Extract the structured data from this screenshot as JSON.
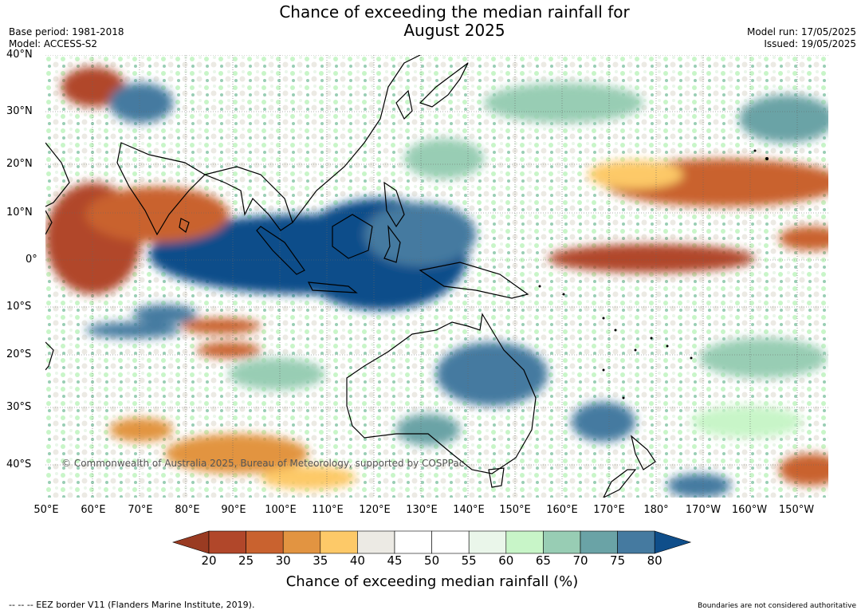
{
  "title_line1": "Chance of exceeding the median rainfall for",
  "title_line2": "August 2025",
  "base_period": "Base period: 1981-2018",
  "model": "Model: ACCESS-S2",
  "model_run": "Model run: 17/05/2025",
  "issued": "Issued: 19/05/2025",
  "copyright": "© Commonwealth of Australia 2025, Bureau of Meteorology, supported by COSPPac",
  "lat_labels": [
    "40°N",
    "30°N",
    "20°N",
    "10°N",
    "0°",
    "10°S",
    "20°S",
    "30°S",
    "40°S"
  ],
  "lon_labels": [
    "50°E",
    "60°E",
    "70°E",
    "80°E",
    "90°E",
    "100°E",
    "110°E",
    "120°E",
    "130°E",
    "140°E",
    "150°E",
    "160°E",
    "170°E",
    "180°",
    "170°W",
    "160°W",
    "150°W"
  ],
  "colorbar": {
    "ticks": [
      "20",
      "25",
      "30",
      "35",
      "40",
      "45",
      "50",
      "55",
      "60",
      "65",
      "70",
      "75",
      "80"
    ],
    "colors": [
      "#9a3b22",
      "#b1472a",
      "#c9622f",
      "#e29441",
      "#fdc968",
      "#eceae4",
      "#ffffff",
      "#ffffff",
      "#eaf6ea",
      "#c8f5c8",
      "#98cdb4",
      "#6aa3a6",
      "#457aa0",
      "#0f4e8a"
    ],
    "title": "Chance of exceeding median rainfall (%)"
  },
  "footer_left": "--  --  -- EEZ border V11 (Flanders Marine Institute, 2019).",
  "footer_right": "Boundaries are not considered authoritative"
}
